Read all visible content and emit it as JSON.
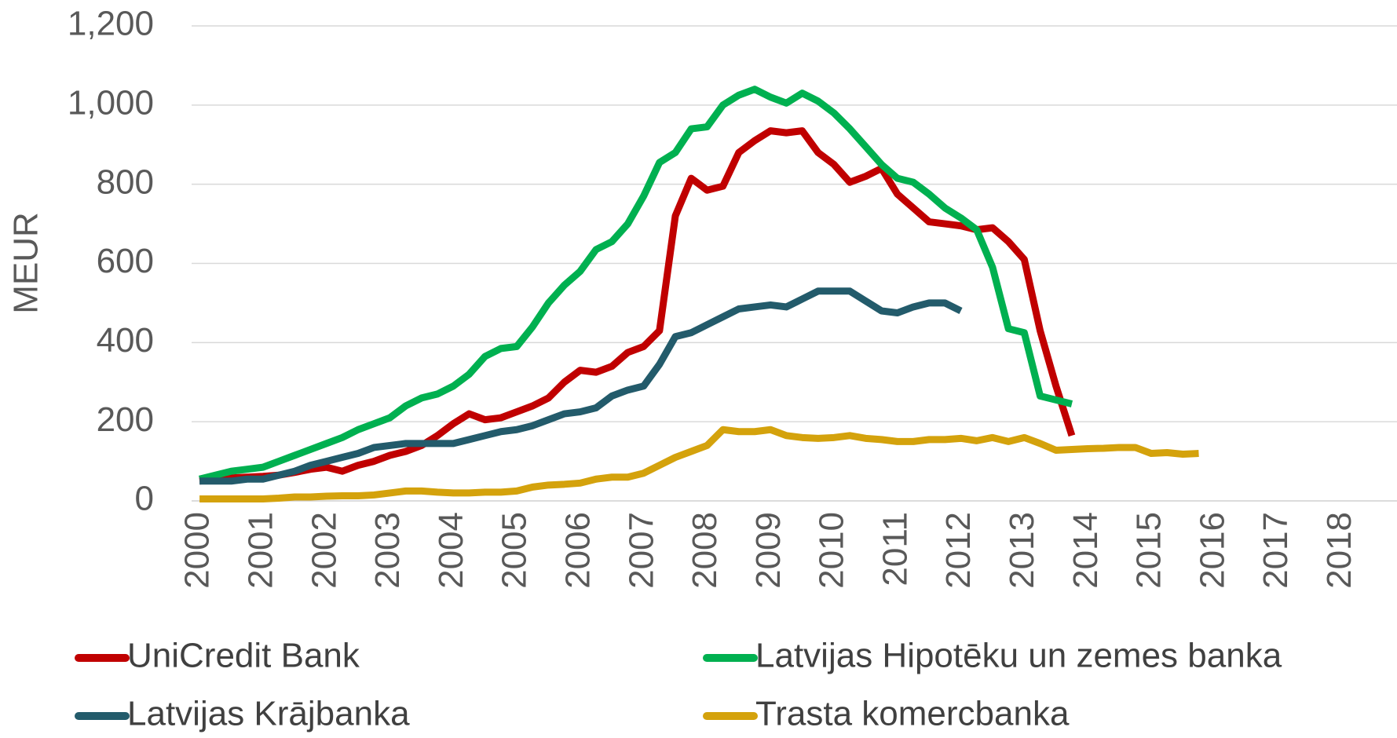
{
  "chart_data": {
    "type": "line",
    "y_label": "MEUR",
    "x": [
      2000,
      2000.25,
      2000.5,
      2000.75,
      2001,
      2001.25,
      2001.5,
      2001.75,
      2002,
      2002.25,
      2002.5,
      2002.75,
      2003,
      2003.25,
      2003.5,
      2003.75,
      2004,
      2004.25,
      2004.5,
      2004.75,
      2005,
      2005.25,
      2005.5,
      2005.75,
      2006,
      2006.25,
      2006.5,
      2006.75,
      2007,
      2007.25,
      2007.5,
      2007.75,
      2008,
      2008.25,
      2008.5,
      2008.75,
      2009,
      2009.25,
      2009.5,
      2009.75,
      2010,
      2010.25,
      2010.5,
      2010.75,
      2011,
      2011.25,
      2011.5,
      2011.75,
      2012,
      2012.25,
      2012.5,
      2012.75,
      2013,
      2013.25,
      2013.5,
      2013.75,
      2014,
      2014.25,
      2014.5,
      2014.75,
      2015,
      2015.25,
      2015.5,
      2015.75,
      2016,
      2016.25,
      2016.5,
      2016.75,
      2017,
      2017.25,
      2017.5,
      2017.75,
      2018,
      2018.25,
      2018.5,
      2018.75
    ],
    "series": [
      {
        "name": "UniCredit Bank",
        "color": "#c00000",
        "values": [
          50,
          55,
          58,
          60,
          62,
          65,
          72,
          80,
          85,
          75,
          90,
          100,
          115,
          125,
          140,
          165,
          195,
          220,
          205,
          210,
          225,
          240,
          260,
          300,
          330,
          325,
          340,
          375,
          390,
          430,
          720,
          815,
          785,
          795,
          880,
          910,
          935,
          930,
          935,
          880,
          850,
          805,
          820,
          840,
          775,
          740,
          705,
          700,
          695,
          685,
          690,
          655,
          610,
          430,
          290,
          165,
          null,
          null,
          null,
          null,
          null,
          null,
          null,
          null,
          null,
          null,
          null,
          null,
          null,
          null,
          null,
          null,
          null,
          null,
          null,
          null
        ]
      },
      {
        "name": "Latvijas Hipotēku un zemes banka",
        "color": "#00b050",
        "values": [
          55,
          65,
          75,
          80,
          85,
          100,
          115,
          130,
          145,
          160,
          180,
          195,
          210,
          240,
          260,
          270,
          290,
          320,
          365,
          385,
          390,
          440,
          500,
          545,
          580,
          635,
          655,
          700,
          770,
          855,
          880,
          940,
          945,
          1000,
          1025,
          1040,
          1020,
          1005,
          1030,
          1010,
          980,
          940,
          895,
          850,
          815,
          805,
          775,
          740,
          715,
          685,
          590,
          435,
          425,
          265,
          255,
          245,
          null,
          null,
          null,
          null,
          null,
          null,
          null,
          null,
          null,
          null,
          null,
          null,
          null,
          null,
          null,
          null,
          null,
          null,
          null,
          null
        ]
      },
      {
        "name": "Latvijas Krājbanka",
        "color": "#235b6b",
        "values": [
          50,
          50,
          50,
          55,
          55,
          65,
          75,
          90,
          100,
          110,
          120,
          135,
          140,
          145,
          145,
          145,
          145,
          155,
          165,
          175,
          180,
          190,
          205,
          220,
          225,
          235,
          265,
          280,
          290,
          345,
          415,
          425,
          445,
          465,
          485,
          490,
          495,
          490,
          510,
          530,
          530,
          530,
          505,
          480,
          475,
          490,
          500,
          500,
          480,
          null,
          null,
          null,
          null,
          null,
          null,
          null,
          null,
          null,
          null,
          null,
          null,
          null,
          null,
          null,
          null,
          null,
          null,
          null,
          null,
          null,
          null,
          null,
          null,
          null,
          null,
          null
        ]
      },
      {
        "name": "Trasta komercbanka",
        "color": "#d4a20c",
        "values": [
          5,
          5,
          5,
          5,
          5,
          7,
          10,
          10,
          12,
          13,
          13,
          15,
          20,
          25,
          25,
          22,
          20,
          20,
          22,
          22,
          25,
          35,
          40,
          42,
          45,
          55,
          60,
          60,
          70,
          90,
          110,
          125,
          140,
          180,
          175,
          175,
          180,
          165,
          160,
          158,
          160,
          165,
          158,
          155,
          150,
          150,
          155,
          155,
          158,
          152,
          160,
          150,
          160,
          145,
          128,
          130,
          132,
          133,
          135,
          135,
          120,
          122,
          118,
          120,
          null,
          null,
          null,
          null,
          null,
          null,
          null,
          null,
          null,
          null,
          null,
          null
        ]
      }
    ],
    "xlim": [
      1999.875,
      2018.875
    ],
    "xticks": [
      2000,
      2001,
      2002,
      2003,
      2004,
      2005,
      2006,
      2007,
      2008,
      2009,
      2010,
      2011,
      2012,
      2013,
      2014,
      2015,
      2016,
      2017,
      2018
    ],
    "ylim": [
      0,
      1200
    ],
    "yticks": [
      0,
      200,
      400,
      600,
      800,
      {
        "value": 1000,
        "label": "1,000"
      },
      {
        "value": 1200,
        "label": "1,200"
      }
    ],
    "grid": true
  }
}
